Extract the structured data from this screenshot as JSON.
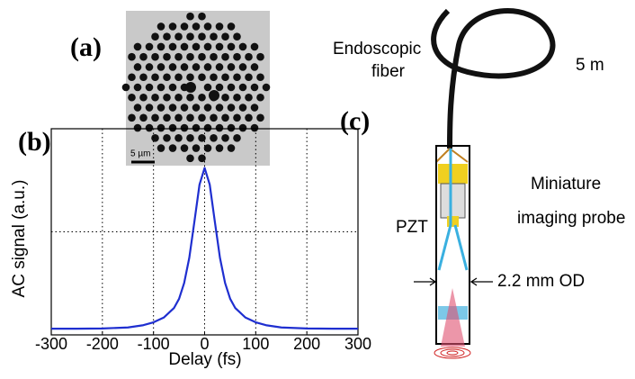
{
  "panel_a": {
    "label": "(a)",
    "scale_bar": "5 µm"
  },
  "panel_c": {
    "label": "(c)",
    "fiber_label": [
      "Endoscopic",
      "fiber"
    ],
    "length": "5 m",
    "probe_label": [
      "Miniature",
      "imaging probe"
    ],
    "pzt": "PZT",
    "diameter": "2.2 mm OD"
  },
  "chart_data": {
    "type": "line",
    "panel_label": "(b)",
    "x_label": "Delay (fs)",
    "y_label": "AC signal (a.u.)",
    "x": [
      -300,
      -250,
      -200,
      -150,
      -120,
      -100,
      -80,
      -60,
      -50,
      -40,
      -30,
      -20,
      -10,
      0,
      10,
      20,
      30,
      40,
      50,
      60,
      80,
      100,
      120,
      150,
      200,
      250,
      300
    ],
    "series": [
      {
        "name": "AC signal",
        "color": "#1f2fd0",
        "values": [
          0.03,
          0.03,
          0.031,
          0.036,
          0.047,
          0.061,
          0.084,
          0.13,
          0.175,
          0.252,
          0.374,
          0.549,
          0.729,
          0.81,
          0.729,
          0.549,
          0.374,
          0.252,
          0.175,
          0.13,
          0.084,
          0.061,
          0.047,
          0.036,
          0.031,
          0.03,
          0.03
        ]
      }
    ],
    "xlim": [
      -300,
      300
    ],
    "xticks": [
      -300,
      -200,
      -100,
      0,
      100,
      200,
      300
    ],
    "ylim": [
      0,
      1
    ],
    "ygrid": [
      0.5
    ],
    "grid": true
  }
}
